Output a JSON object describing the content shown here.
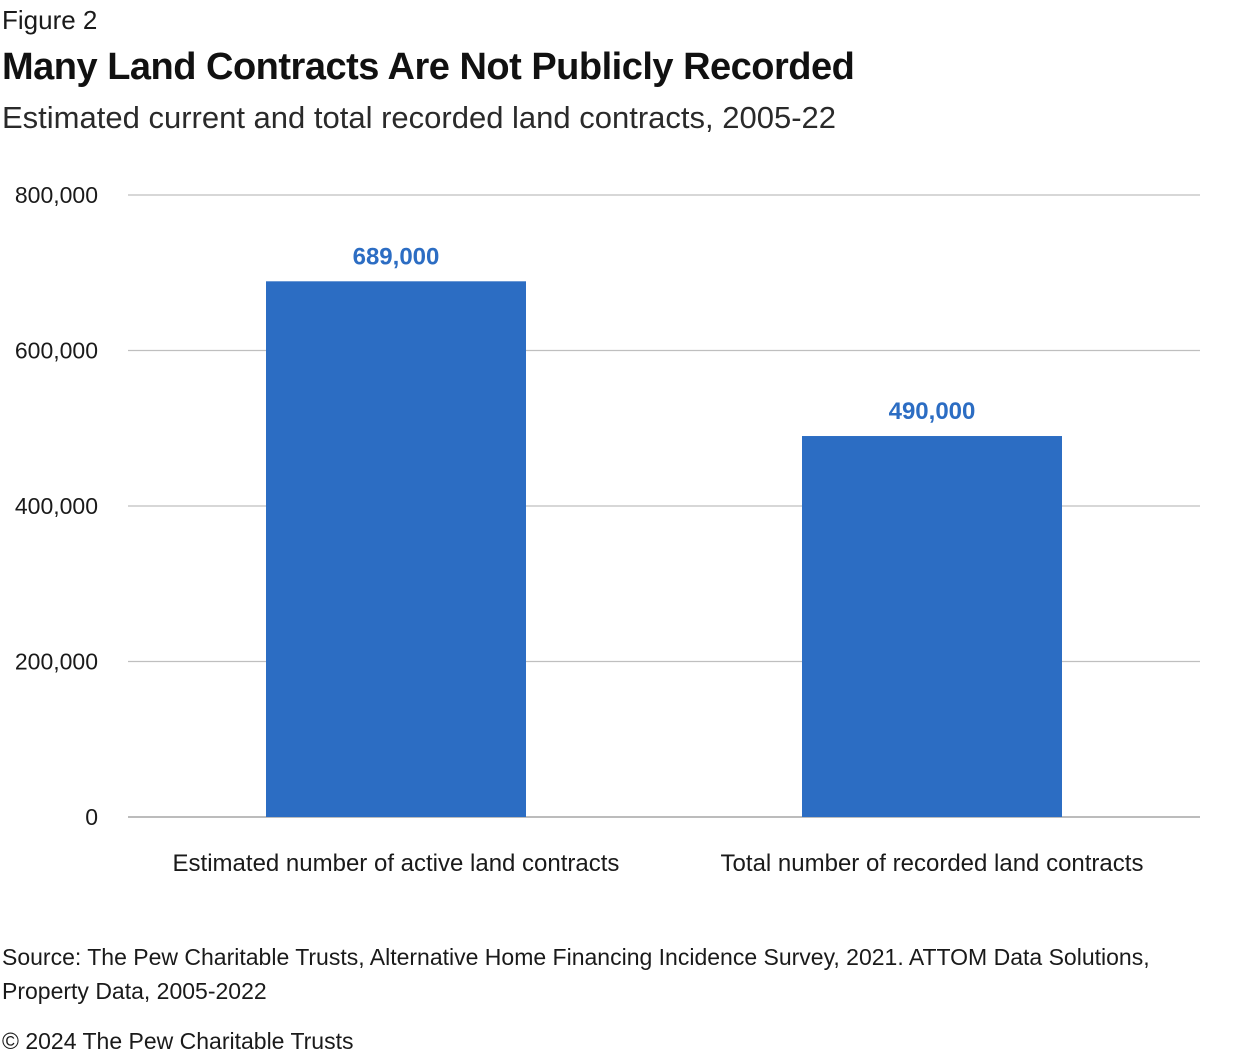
{
  "figure_label": "Figure 2",
  "title": "Many Land Contracts Are Not Publicly Recorded",
  "subtitle": "Estimated current and total recorded land contracts, 2005-22",
  "colors": {
    "bar": "#2C6DC3",
    "value_label": "#2C6DC3",
    "gridline": "#bfbfbf",
    "baseline": "#a6a6a6"
  },
  "chart_data": {
    "type": "bar",
    "categories": [
      "Estimated number of active land contracts",
      "Total number of recorded land contracts"
    ],
    "values": [
      689000,
      490000
    ],
    "value_labels": [
      "689,000",
      "490,000"
    ],
    "ylim": [
      0,
      800000
    ],
    "yticks": [
      0,
      200000,
      400000,
      600000,
      800000
    ],
    "ytick_labels": [
      "0",
      "200,000",
      "400,000",
      "600,000",
      "800,000"
    ],
    "grid": true
  },
  "source": "Source: The Pew Charitable Trusts, Alternative Home Financing Incidence Survey, 2021. ATTOM Data Solutions, Property Data, 2005-2022",
  "copyright": "© 2024 The Pew Charitable Trusts"
}
